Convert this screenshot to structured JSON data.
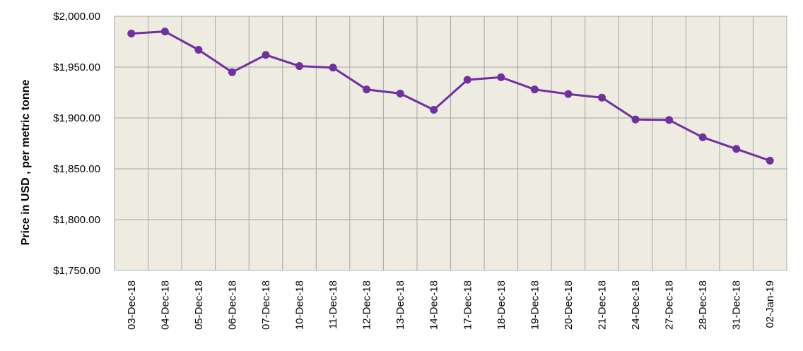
{
  "chart_data": {
    "type": "line",
    "title": "",
    "xlabel": "",
    "ylabel": "Price in USD , per metric tonne",
    "ylim": [
      1750,
      2000
    ],
    "y_ticks": [
      "$1,750.00",
      "$1,800.00",
      "$1,850.00",
      "$1,900.00",
      "$1,950.00",
      "$2,000.00"
    ],
    "y_tick_values": [
      1750,
      1800,
      1850,
      1900,
      1950,
      2000
    ],
    "grid": true,
    "plot_background": "#EEEBE0",
    "grid_color": "#A6A6A6",
    "series_color": "#7030A0",
    "categories": [
      "03-Dec-18",
      "04-Dec-18",
      "05-Dec-18",
      "06-Dec-18",
      "07-Dec-18",
      "10-Dec-18",
      "11-Dec-18",
      "12-Dec-18",
      "13-Dec-18",
      "14-Dec-18",
      "17-Dec-18",
      "18-Dec-18",
      "19-Dec-18",
      "20-Dec-18",
      "21-Dec-18",
      "24-Dec-18",
      "27-Dec-18",
      "28-Dec-18",
      "31-Dec-18",
      "02-Jan-19"
    ],
    "series": [
      {
        "values": [
          1983,
          1985,
          1967,
          1945,
          1962,
          1951,
          1949.5,
          1928,
          1924,
          1908,
          1937.5,
          1940,
          1928,
          1923.5,
          1920,
          1898.5,
          1898,
          1881,
          1869.5,
          1858
        ]
      }
    ]
  }
}
